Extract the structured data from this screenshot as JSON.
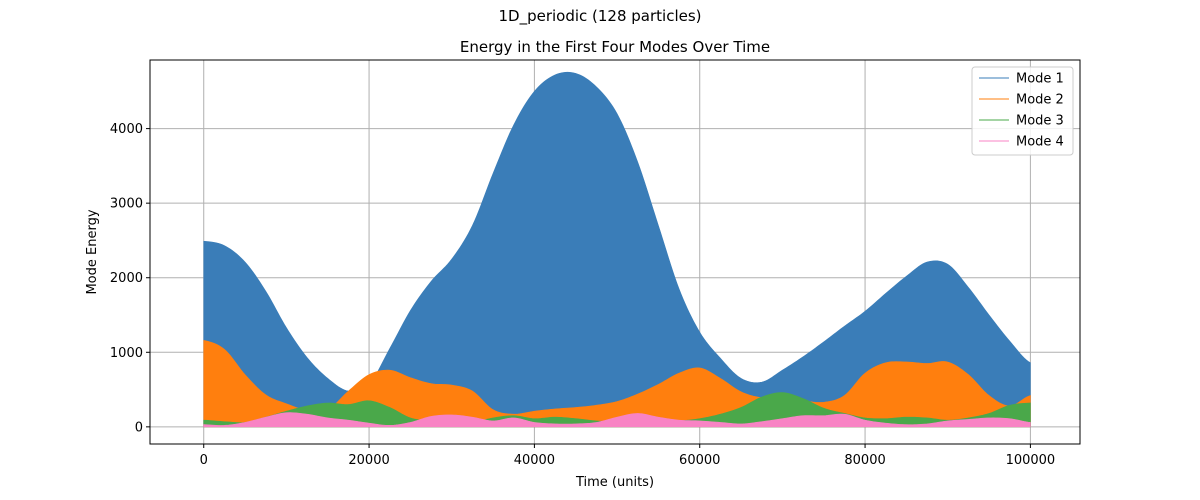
{
  "figure": {
    "suptitle": "1D_periodic (128 particles)"
  },
  "chart_data": {
    "type": "area",
    "title": "Energy in the First Four Modes Over Time",
    "xlabel": "Time (units)",
    "ylabel": "Mode Energy",
    "xlim": [
      -6500,
      106000
    ],
    "ylim": [
      -230,
      4920
    ],
    "xticks": [
      0,
      20000,
      40000,
      60000,
      80000,
      100000
    ],
    "yticks": [
      0,
      1000,
      2000,
      3000,
      4000
    ],
    "grid": true,
    "legend_position": "top-right",
    "note_series_drawn_as_oscillation_envelopes": true,
    "series": [
      {
        "name": "Mode 1",
        "color": "#3a7db8",
        "points": [
          [
            0,
            2490
          ],
          [
            2500,
            2430
          ],
          [
            5000,
            2210
          ],
          [
            7500,
            1820
          ],
          [
            10000,
            1330
          ],
          [
            12500,
            930
          ],
          [
            15000,
            650
          ],
          [
            17500,
            480
          ],
          [
            20000,
            570
          ],
          [
            22500,
            1050
          ],
          [
            25000,
            1560
          ],
          [
            27500,
            1950
          ],
          [
            30000,
            2250
          ],
          [
            32500,
            2700
          ],
          [
            35000,
            3400
          ],
          [
            37500,
            4050
          ],
          [
            40000,
            4500
          ],
          [
            42500,
            4720
          ],
          [
            45000,
            4740
          ],
          [
            47500,
            4560
          ],
          [
            50000,
            4200
          ],
          [
            52500,
            3550
          ],
          [
            55000,
            2700
          ],
          [
            57500,
            1850
          ],
          [
            60000,
            1270
          ],
          [
            62500,
            920
          ],
          [
            65000,
            650
          ],
          [
            67500,
            600
          ],
          [
            70000,
            760
          ],
          [
            72500,
            940
          ],
          [
            75000,
            1140
          ],
          [
            77500,
            1350
          ],
          [
            80000,
            1550
          ],
          [
            82500,
            1790
          ],
          [
            85000,
            2020
          ],
          [
            87500,
            2210
          ],
          [
            90000,
            2180
          ],
          [
            92500,
            1870
          ],
          [
            95000,
            1500
          ],
          [
            97500,
            1150
          ],
          [
            100000,
            860
          ]
        ]
      },
      {
        "name": "Mode 2",
        "color": "#ff7f0e",
        "points": [
          [
            0,
            1160
          ],
          [
            2500,
            1040
          ],
          [
            5000,
            700
          ],
          [
            7500,
            430
          ],
          [
            10000,
            310
          ],
          [
            12500,
            220
          ],
          [
            15000,
            230
          ],
          [
            17500,
            480
          ],
          [
            20000,
            700
          ],
          [
            22500,
            760
          ],
          [
            25000,
            660
          ],
          [
            27500,
            580
          ],
          [
            30000,
            560
          ],
          [
            32500,
            480
          ],
          [
            35000,
            230
          ],
          [
            37500,
            170
          ],
          [
            40000,
            210
          ],
          [
            42500,
            240
          ],
          [
            45000,
            260
          ],
          [
            47500,
            290
          ],
          [
            50000,
            340
          ],
          [
            52500,
            440
          ],
          [
            55000,
            570
          ],
          [
            57500,
            720
          ],
          [
            60000,
            790
          ],
          [
            62500,
            650
          ],
          [
            65000,
            470
          ],
          [
            67500,
            390
          ],
          [
            70000,
            380
          ],
          [
            72500,
            350
          ],
          [
            75000,
            330
          ],
          [
            77500,
            420
          ],
          [
            80000,
            720
          ],
          [
            82500,
            860
          ],
          [
            85000,
            870
          ],
          [
            87500,
            850
          ],
          [
            90000,
            870
          ],
          [
            92500,
            700
          ],
          [
            95000,
            420
          ],
          [
            97500,
            280
          ],
          [
            100000,
            420
          ]
        ]
      },
      {
        "name": "Mode 3",
        "color": "#4aa84a",
        "points": [
          [
            0,
            90
          ],
          [
            2500,
            70
          ],
          [
            5000,
            60
          ],
          [
            7500,
            130
          ],
          [
            10000,
            210
          ],
          [
            12500,
            280
          ],
          [
            15000,
            320
          ],
          [
            17500,
            300
          ],
          [
            20000,
            350
          ],
          [
            22500,
            260
          ],
          [
            25000,
            120
          ],
          [
            27500,
            80
          ],
          [
            30000,
            60
          ],
          [
            32500,
            60
          ],
          [
            35000,
            120
          ],
          [
            37500,
            150
          ],
          [
            40000,
            110
          ],
          [
            42500,
            130
          ],
          [
            45000,
            110
          ],
          [
            47500,
            80
          ],
          [
            50000,
            70
          ],
          [
            52500,
            60
          ],
          [
            55000,
            70
          ],
          [
            57500,
            80
          ],
          [
            60000,
            110
          ],
          [
            62500,
            170
          ],
          [
            65000,
            260
          ],
          [
            67500,
            400
          ],
          [
            70000,
            460
          ],
          [
            72500,
            380
          ],
          [
            75000,
            250
          ],
          [
            77500,
            180
          ],
          [
            80000,
            120
          ],
          [
            82500,
            110
          ],
          [
            85000,
            130
          ],
          [
            87500,
            120
          ],
          [
            90000,
            90
          ],
          [
            92500,
            120
          ],
          [
            95000,
            180
          ],
          [
            97500,
            290
          ],
          [
            100000,
            320
          ]
        ]
      },
      {
        "name": "Mode 4",
        "color": "#f883c4",
        "points": [
          [
            0,
            30
          ],
          [
            2500,
            20
          ],
          [
            5000,
            60
          ],
          [
            7500,
            130
          ],
          [
            10000,
            190
          ],
          [
            12500,
            170
          ],
          [
            15000,
            120
          ],
          [
            17500,
            90
          ],
          [
            20000,
            50
          ],
          [
            22500,
            20
          ],
          [
            25000,
            60
          ],
          [
            27500,
            140
          ],
          [
            30000,
            160
          ],
          [
            32500,
            130
          ],
          [
            35000,
            80
          ],
          [
            37500,
            120
          ],
          [
            40000,
            60
          ],
          [
            42500,
            40
          ],
          [
            45000,
            40
          ],
          [
            47500,
            60
          ],
          [
            50000,
            130
          ],
          [
            52500,
            180
          ],
          [
            55000,
            130
          ],
          [
            57500,
            90
          ],
          [
            60000,
            80
          ],
          [
            62500,
            60
          ],
          [
            65000,
            40
          ],
          [
            67500,
            70
          ],
          [
            70000,
            110
          ],
          [
            72500,
            150
          ],
          [
            75000,
            150
          ],
          [
            77500,
            170
          ],
          [
            80000,
            90
          ],
          [
            82500,
            50
          ],
          [
            85000,
            30
          ],
          [
            87500,
            40
          ],
          [
            90000,
            80
          ],
          [
            92500,
            100
          ],
          [
            95000,
            120
          ],
          [
            97500,
            110
          ],
          [
            100000,
            60
          ]
        ]
      }
    ]
  }
}
